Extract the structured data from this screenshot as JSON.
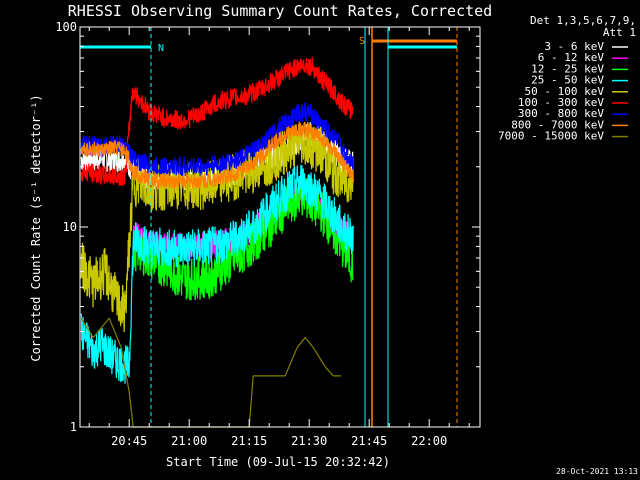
{
  "chart_data": {
    "type": "line",
    "title": "RHESSI Observing Summary Count Rates, Corrected",
    "xlabel": "Start Time (09-Jul-15 20:32:42)",
    "ylabel": "Corrected Count Rate (s⁻¹ detector⁻¹)",
    "y_scale": "log",
    "ylim": [
      1,
      100
    ],
    "y_ticks": [
      1,
      10,
      100
    ],
    "y_tick_labels": [
      "1",
      "10",
      "100"
    ],
    "x_ticks": [
      "20:45",
      "21:00",
      "21:15",
      "21:30",
      "21:45",
      "22:00"
    ],
    "x_tick_values_min": [
      45,
      60,
      75,
      90,
      105,
      120
    ],
    "xlim_min": [
      32.7,
      132.7
    ],
    "legend_header": [
      "Det 1,3,5,6,7,9,",
      "Att 1"
    ],
    "footer": "28-Oct-2021 13:13",
    "markers": [
      {
        "label": "N",
        "color": "#00ffff"
      },
      {
        "label": "S",
        "color": "#ff8000"
      }
    ],
    "series": [
      {
        "name": "3 - 6 keV",
        "color": "#ffffff",
        "jitter": 0.07,
        "points": [
          [
            33,
            22
          ],
          [
            44,
            22
          ],
          [
            45.5,
            20
          ],
          [
            47,
            19
          ],
          [
            50,
            18
          ],
          [
            55,
            18
          ],
          [
            60,
            18
          ],
          [
            66,
            18
          ],
          [
            72,
            19
          ],
          [
            78,
            21
          ],
          [
            84,
            24
          ],
          [
            88,
            27
          ],
          [
            90,
            29
          ],
          [
            92,
            28
          ],
          [
            96,
            24
          ],
          [
            99,
            21
          ],
          [
            101,
            21
          ]
        ]
      },
      {
        "name": "6 - 12 keV",
        "color": "#ff00ff",
        "jitter": 0.07,
        "points": [
          [
            46,
            8.7
          ],
          [
            47,
            9.1
          ],
          [
            50,
            8.2
          ],
          [
            56,
            8.0
          ],
          [
            64,
            8.0
          ],
          [
            70,
            8.5
          ],
          [
            76,
            9.6
          ],
          [
            81,
            11.5
          ],
          [
            85,
            14
          ],
          [
            88,
            15
          ],
          [
            90,
            14
          ],
          [
            92,
            13
          ],
          [
            95,
            11
          ],
          [
            98,
            9.5
          ],
          [
            101,
            9.0
          ]
        ]
      },
      {
        "name": "12 - 25 keV",
        "color": "#00ff00",
        "jitter": 0.11,
        "points": [
          [
            46,
            7.6
          ],
          [
            47,
            7.8
          ],
          [
            50,
            7.0
          ],
          [
            55,
            6.2
          ],
          [
            58,
            5.5
          ],
          [
            65,
            5.6
          ],
          [
            70,
            6.6
          ],
          [
            75,
            8.0
          ],
          [
            80,
            10
          ],
          [
            85,
            13
          ],
          [
            88,
            14.5
          ],
          [
            90,
            13.5
          ],
          [
            93,
            12
          ],
          [
            96,
            9.5
          ],
          [
            99,
            7.5
          ],
          [
            101,
            6.5
          ]
        ]
      },
      {
        "name": "25 - 50 keV",
        "color": "#00ffff",
        "jitter": 0.1,
        "points": [
          [
            33,
            3.0
          ],
          [
            36,
            2.4
          ],
          [
            38,
            2.6
          ],
          [
            41,
            2.2
          ],
          [
            45,
            2.0
          ],
          [
            46,
            8.3
          ],
          [
            47,
            8.7
          ],
          [
            50,
            8.0
          ],
          [
            56,
            7.8
          ],
          [
            64,
            7.9
          ],
          [
            70,
            8.4
          ],
          [
            76,
            10
          ],
          [
            81,
            13
          ],
          [
            85,
            15.5
          ],
          [
            88,
            17
          ],
          [
            90,
            16
          ],
          [
            93,
            14
          ],
          [
            96,
            11.5
          ],
          [
            99,
            9.5
          ],
          [
            101,
            9.0
          ]
        ]
      },
      {
        "name": "50 - 100 keV",
        "color": "#c8c800",
        "jitter": 0.12,
        "points": [
          [
            33,
            6.5
          ],
          [
            36,
            5.2
          ],
          [
            39,
            6.0
          ],
          [
            42,
            4.2
          ],
          [
            44,
            3.8
          ],
          [
            46,
            17
          ],
          [
            50,
            15.5
          ],
          [
            56,
            16
          ],
          [
            64,
            16
          ],
          [
            72,
            18
          ],
          [
            78,
            20
          ],
          [
            84,
            24
          ],
          [
            88,
            27
          ],
          [
            90,
            26
          ],
          [
            93,
            24
          ],
          [
            96,
            19
          ],
          [
            99,
            17
          ],
          [
            101,
            17
          ]
        ]
      },
      {
        "name": "100 - 300 keV",
        "color": "#ff0000",
        "jitter": 0.05,
        "points": [
          [
            33,
            19
          ],
          [
            36,
            18.5
          ],
          [
            39,
            18
          ],
          [
            42,
            18
          ],
          [
            44,
            18
          ],
          [
            45.8,
            48
          ],
          [
            47,
            45
          ],
          [
            50,
            38
          ],
          [
            54,
            35
          ],
          [
            58,
            34
          ],
          [
            62,
            36
          ],
          [
            66,
            41
          ],
          [
            70,
            44
          ],
          [
            74,
            45
          ],
          [
            78,
            49
          ],
          [
            82,
            55
          ],
          [
            86,
            62
          ],
          [
            89,
            65
          ],
          [
            91,
            63
          ],
          [
            93,
            55
          ],
          [
            96,
            48
          ],
          [
            99,
            40
          ],
          [
            101,
            38
          ]
        ]
      },
      {
        "name": "300 - 800 keV",
        "color": "#0000ff",
        "jitter": 0.05,
        "points": [
          [
            33,
            26
          ],
          [
            38,
            25
          ],
          [
            42,
            26
          ],
          [
            44,
            25
          ],
          [
            46,
            22
          ],
          [
            48,
            21
          ],
          [
            52,
            20
          ],
          [
            58,
            20
          ],
          [
            64,
            20
          ],
          [
            70,
            21
          ],
          [
            75,
            23
          ],
          [
            80,
            28
          ],
          [
            84,
            33
          ],
          [
            87,
            37
          ],
          [
            89,
            38
          ],
          [
            91,
            36
          ],
          [
            94,
            31
          ],
          [
            97,
            27
          ],
          [
            99,
            23
          ],
          [
            101,
            21
          ]
        ]
      },
      {
        "name": "800 - 7000 keV",
        "color": "#ff8000",
        "jitter": 0.04,
        "points": [
          [
            33,
            25
          ],
          [
            38,
            24
          ],
          [
            42,
            25
          ],
          [
            44,
            24
          ],
          [
            46,
            19
          ],
          [
            48,
            18
          ],
          [
            52,
            17
          ],
          [
            58,
            17
          ],
          [
            64,
            17
          ],
          [
            70,
            18
          ],
          [
            75,
            20
          ],
          [
            80,
            25
          ],
          [
            84,
            29
          ],
          [
            88,
            31
          ],
          [
            90,
            30
          ],
          [
            93,
            28
          ],
          [
            96,
            24
          ],
          [
            99,
            20
          ],
          [
            101,
            18
          ]
        ]
      },
      {
        "name": "7000 - 15000 keV",
        "color": "#808000",
        "jitter": 0.0,
        "points": [
          [
            33,
            3.5
          ],
          [
            36,
            2.8
          ],
          [
            40,
            3.5
          ],
          [
            43,
            2.5
          ],
          [
            45,
            1.5
          ],
          [
            46,
            1.0
          ],
          [
            49,
            1.0
          ],
          [
            60,
            1.0
          ],
          [
            75,
            1.0
          ],
          [
            76,
            1.8
          ],
          [
            80,
            1.8
          ],
          [
            84,
            1.8
          ],
          [
            87,
            2.5
          ],
          [
            89,
            2.8
          ],
          [
            91,
            2.5
          ],
          [
            94,
            2.0
          ],
          [
            96,
            1.8
          ],
          [
            98,
            1.8
          ]
        ]
      }
    ]
  }
}
